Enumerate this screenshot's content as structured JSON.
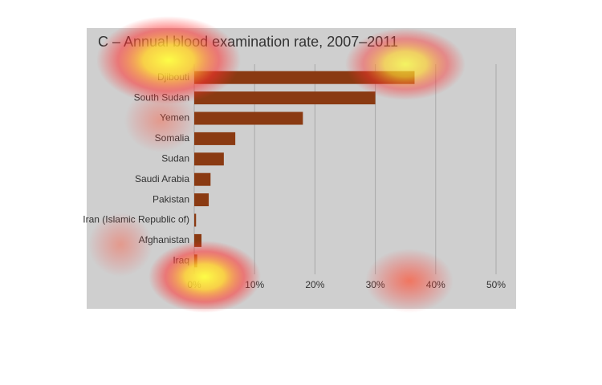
{
  "chart_data": {
    "type": "bar",
    "orientation": "horizontal",
    "title": "C – Annual blood examination rate, 2007–2011",
    "categories": [
      "Djibouti",
      "South Sudan",
      "Yemen",
      "Somalia",
      "Sudan",
      "Saudi Arabia",
      "Pakistan",
      "Iran (Islamic Republic of)",
      "Afghanistan",
      "Iraq"
    ],
    "values": [
      36.5,
      30,
      18,
      6.8,
      4.9,
      2.7,
      2.4,
      0.3,
      1.2,
      0.5
    ],
    "color": "#8a3a12",
    "xlim": [
      0,
      50
    ],
    "xticks": [
      {
        "value": 0,
        "label": "0%"
      },
      {
        "value": 10,
        "label": "10%"
      },
      {
        "value": 20,
        "label": "20%"
      },
      {
        "value": 30,
        "label": "30%"
      },
      {
        "value": 40,
        "label": "40%"
      },
      {
        "value": 50,
        "label": "50%"
      }
    ],
    "grid": true
  }
}
